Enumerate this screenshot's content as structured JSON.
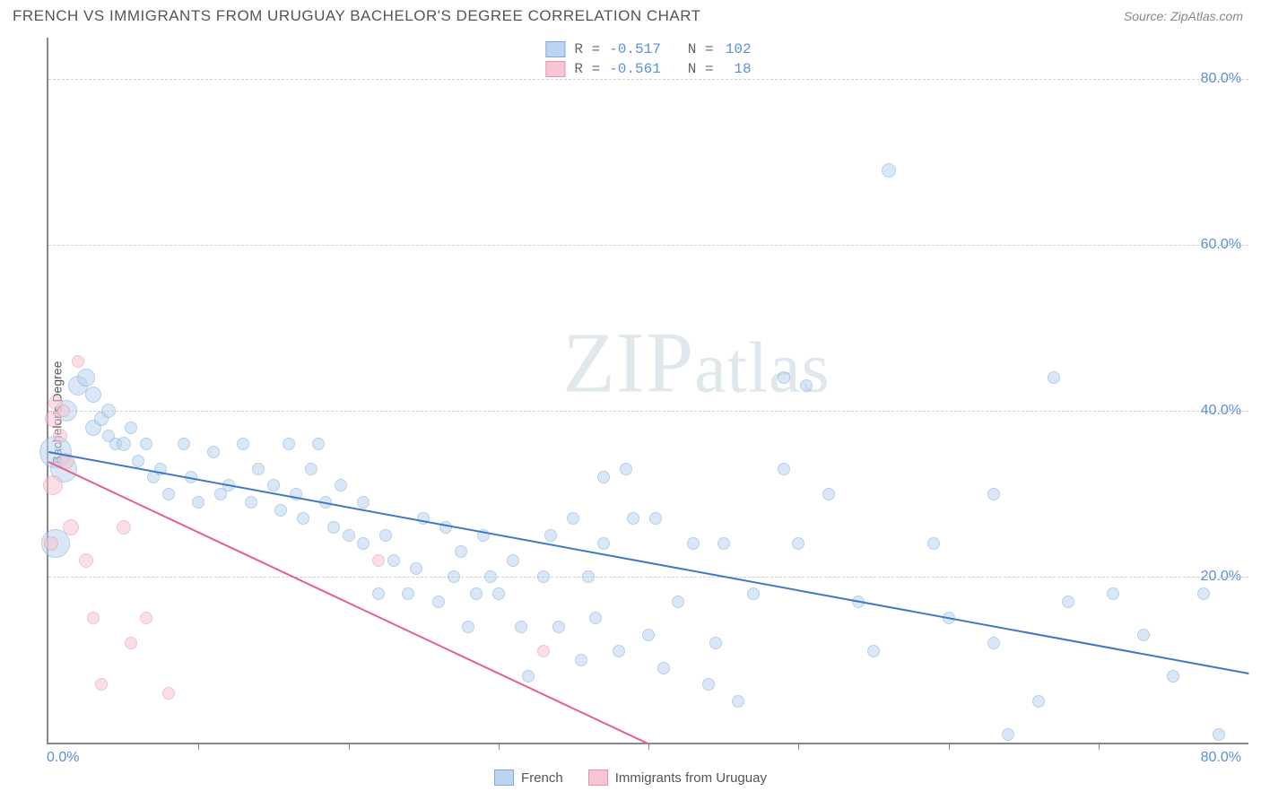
{
  "header": {
    "title": "FRENCH VS IMMIGRANTS FROM URUGUAY BACHELOR'S DEGREE CORRELATION CHART",
    "source": "Source: ZipAtlas.com"
  },
  "watermark": {
    "prefix": "ZIP",
    "suffix": "atlas"
  },
  "chart": {
    "type": "scatter",
    "ylabel": "Bachelor's Degree",
    "x_min": 0,
    "x_max": 80,
    "y_min": 0,
    "y_max": 85,
    "x_tick_format": "{v}.0%",
    "y_tick_format": "{v}.0%",
    "x_axis_labels": {
      "left": "0.0%",
      "right": "80.0%"
    },
    "y_ticks": [
      20,
      40,
      60,
      80
    ],
    "x_ticks_minor": [
      10,
      20,
      30,
      40,
      50,
      60,
      70
    ],
    "grid_color": "#d0d0d0",
    "background_color": "#ffffff",
    "series": [
      {
        "key": "french",
        "label": "French",
        "fill": "#bcd4ef",
        "stroke": "#7fa9d8",
        "fill_opacity": 0.55,
        "trend": {
          "color": "#3d78c9",
          "x1": 0,
          "y1": 35.2,
          "x2": 80,
          "y2": 8.5,
          "width": 2
        },
        "r_value": "-0.517",
        "n_value": "102",
        "points": [
          {
            "x": 0.5,
            "y": 35,
            "r": 18
          },
          {
            "x": 0.5,
            "y": 24,
            "r": 16
          },
          {
            "x": 1,
            "y": 33,
            "r": 15
          },
          {
            "x": 1.2,
            "y": 40,
            "r": 12
          },
          {
            "x": 2,
            "y": 43,
            "r": 11
          },
          {
            "x": 2.5,
            "y": 44,
            "r": 10
          },
          {
            "x": 3,
            "y": 42,
            "r": 9
          },
          {
            "x": 3,
            "y": 38,
            "r": 9
          },
          {
            "x": 3.5,
            "y": 39,
            "r": 8
          },
          {
            "x": 4,
            "y": 40,
            "r": 8
          },
          {
            "x": 4,
            "y": 37,
            "r": 7
          },
          {
            "x": 4.5,
            "y": 36,
            "r": 7
          },
          {
            "x": 5,
            "y": 36,
            "r": 8
          },
          {
            "x": 5.5,
            "y": 38,
            "r": 7
          },
          {
            "x": 6,
            "y": 34,
            "r": 7
          },
          {
            "x": 6.5,
            "y": 36,
            "r": 7
          },
          {
            "x": 7,
            "y": 32,
            "r": 7
          },
          {
            "x": 7.5,
            "y": 33,
            "r": 7
          },
          {
            "x": 8,
            "y": 30,
            "r": 7
          },
          {
            "x": 9,
            "y": 36,
            "r": 7
          },
          {
            "x": 9.5,
            "y": 32,
            "r": 7
          },
          {
            "x": 10,
            "y": 29,
            "r": 7
          },
          {
            "x": 11,
            "y": 35,
            "r": 7
          },
          {
            "x": 11.5,
            "y": 30,
            "r": 7
          },
          {
            "x": 12,
            "y": 31,
            "r": 7
          },
          {
            "x": 13,
            "y": 36,
            "r": 7
          },
          {
            "x": 13.5,
            "y": 29,
            "r": 7
          },
          {
            "x": 14,
            "y": 33,
            "r": 7
          },
          {
            "x": 15,
            "y": 31,
            "r": 7
          },
          {
            "x": 15.5,
            "y": 28,
            "r": 7
          },
          {
            "x": 16,
            "y": 36,
            "r": 7
          },
          {
            "x": 16.5,
            "y": 30,
            "r": 7
          },
          {
            "x": 17,
            "y": 27,
            "r": 7
          },
          {
            "x": 17.5,
            "y": 33,
            "r": 7
          },
          {
            "x": 18,
            "y": 36,
            "r": 7
          },
          {
            "x": 18.5,
            "y": 29,
            "r": 7
          },
          {
            "x": 19,
            "y": 26,
            "r": 7
          },
          {
            "x": 19.5,
            "y": 31,
            "r": 7
          },
          {
            "x": 20,
            "y": 25,
            "r": 7
          },
          {
            "x": 21,
            "y": 29,
            "r": 7
          },
          {
            "x": 21,
            "y": 24,
            "r": 7
          },
          {
            "x": 22,
            "y": 18,
            "r": 7
          },
          {
            "x": 22.5,
            "y": 25,
            "r": 7
          },
          {
            "x": 23,
            "y": 22,
            "r": 7
          },
          {
            "x": 24,
            "y": 18,
            "r": 7
          },
          {
            "x": 24.5,
            "y": 21,
            "r": 7
          },
          {
            "x": 25,
            "y": 27,
            "r": 7
          },
          {
            "x": 26,
            "y": 17,
            "r": 7
          },
          {
            "x": 26.5,
            "y": 26,
            "r": 7
          },
          {
            "x": 27,
            "y": 20,
            "r": 7
          },
          {
            "x": 27.5,
            "y": 23,
            "r": 7
          },
          {
            "x": 28,
            "y": 14,
            "r": 7
          },
          {
            "x": 28.5,
            "y": 18,
            "r": 7
          },
          {
            "x": 29,
            "y": 25,
            "r": 7
          },
          {
            "x": 29.5,
            "y": 20,
            "r": 7
          },
          {
            "x": 30,
            "y": 18,
            "r": 7
          },
          {
            "x": 31,
            "y": 22,
            "r": 7
          },
          {
            "x": 31.5,
            "y": 14,
            "r": 7
          },
          {
            "x": 32,
            "y": 8,
            "r": 7
          },
          {
            "x": 33,
            "y": 20,
            "r": 7
          },
          {
            "x": 33.5,
            "y": 25,
            "r": 7
          },
          {
            "x": 34,
            "y": 14,
            "r": 7
          },
          {
            "x": 35,
            "y": 27,
            "r": 7
          },
          {
            "x": 35.5,
            "y": 10,
            "r": 7
          },
          {
            "x": 36,
            "y": 20,
            "r": 7
          },
          {
            "x": 36.5,
            "y": 15,
            "r": 7
          },
          {
            "x": 37,
            "y": 32,
            "r": 7
          },
          {
            "x": 37,
            "y": 24,
            "r": 7
          },
          {
            "x": 38,
            "y": 11,
            "r": 7
          },
          {
            "x": 38.5,
            "y": 33,
            "r": 7
          },
          {
            "x": 39,
            "y": 27,
            "r": 7
          },
          {
            "x": 40,
            "y": 13,
            "r": 7
          },
          {
            "x": 40.5,
            "y": 27,
            "r": 7
          },
          {
            "x": 41,
            "y": 9,
            "r": 7
          },
          {
            "x": 42,
            "y": 17,
            "r": 7
          },
          {
            "x": 43,
            "y": 24,
            "r": 7
          },
          {
            "x": 44,
            "y": 7,
            "r": 7
          },
          {
            "x": 44.5,
            "y": 12,
            "r": 7
          },
          {
            "x": 45,
            "y": 24,
            "r": 7
          },
          {
            "x": 46,
            "y": 5,
            "r": 7
          },
          {
            "x": 47,
            "y": 18,
            "r": 7
          },
          {
            "x": 49,
            "y": 44,
            "r": 7
          },
          {
            "x": 49,
            "y": 33,
            "r": 7
          },
          {
            "x": 50,
            "y": 24,
            "r": 7
          },
          {
            "x": 50.5,
            "y": 43,
            "r": 7
          },
          {
            "x": 52,
            "y": 30,
            "r": 7
          },
          {
            "x": 54,
            "y": 17,
            "r": 7
          },
          {
            "x": 55,
            "y": 11,
            "r": 7
          },
          {
            "x": 56,
            "y": 69,
            "r": 8
          },
          {
            "x": 59,
            "y": 24,
            "r": 7
          },
          {
            "x": 60,
            "y": 15,
            "r": 7
          },
          {
            "x": 63,
            "y": 30,
            "r": 7
          },
          {
            "x": 63,
            "y": 12,
            "r": 7
          },
          {
            "x": 64,
            "y": 1,
            "r": 7
          },
          {
            "x": 66,
            "y": 5,
            "r": 7
          },
          {
            "x": 67,
            "y": 44,
            "r": 7
          },
          {
            "x": 68,
            "y": 17,
            "r": 7
          },
          {
            "x": 71,
            "y": 18,
            "r": 7
          },
          {
            "x": 73,
            "y": 13,
            "r": 7
          },
          {
            "x": 75,
            "y": 8,
            "r": 7
          },
          {
            "x": 77,
            "y": 18,
            "r": 7
          },
          {
            "x": 78,
            "y": 1,
            "r": 7
          }
        ]
      },
      {
        "key": "uruguay",
        "label": "Immigrants from Uruguay",
        "fill": "#f6c6d2",
        "stroke": "#e594ab",
        "fill_opacity": 0.55,
        "trend": {
          "color": "#e65f87",
          "x1": 0,
          "y1": 34,
          "x2": 40,
          "y2": 0,
          "width": 2
        },
        "r_value": "-0.561",
        "n_value": "18",
        "points": [
          {
            "x": 0.3,
            "y": 39,
            "r": 9
          },
          {
            "x": 0.5,
            "y": 41,
            "r": 8
          },
          {
            "x": 0.8,
            "y": 37,
            "r": 8
          },
          {
            "x": 1,
            "y": 40,
            "r": 7
          },
          {
            "x": 1.2,
            "y": 34,
            "r": 9
          },
          {
            "x": 0.3,
            "y": 31,
            "r": 11
          },
          {
            "x": 0.2,
            "y": 24,
            "r": 8
          },
          {
            "x": 1.5,
            "y": 26,
            "r": 9
          },
          {
            "x": 2,
            "y": 46,
            "r": 7
          },
          {
            "x": 2.5,
            "y": 22,
            "r": 8
          },
          {
            "x": 3,
            "y": 15,
            "r": 7
          },
          {
            "x": 3.5,
            "y": 7,
            "r": 7
          },
          {
            "x": 5,
            "y": 26,
            "r": 8
          },
          {
            "x": 5.5,
            "y": 12,
            "r": 7
          },
          {
            "x": 6.5,
            "y": 15,
            "r": 7
          },
          {
            "x": 8,
            "y": 6,
            "r": 7
          },
          {
            "x": 22,
            "y": 22,
            "r": 7
          },
          {
            "x": 33,
            "y": 11,
            "r": 7
          }
        ]
      }
    ],
    "legend_top": {
      "r_label": "R =",
      "n_label": "N ="
    },
    "legend_bottom_labels": [
      "French",
      "Immigrants from Uruguay"
    ]
  }
}
